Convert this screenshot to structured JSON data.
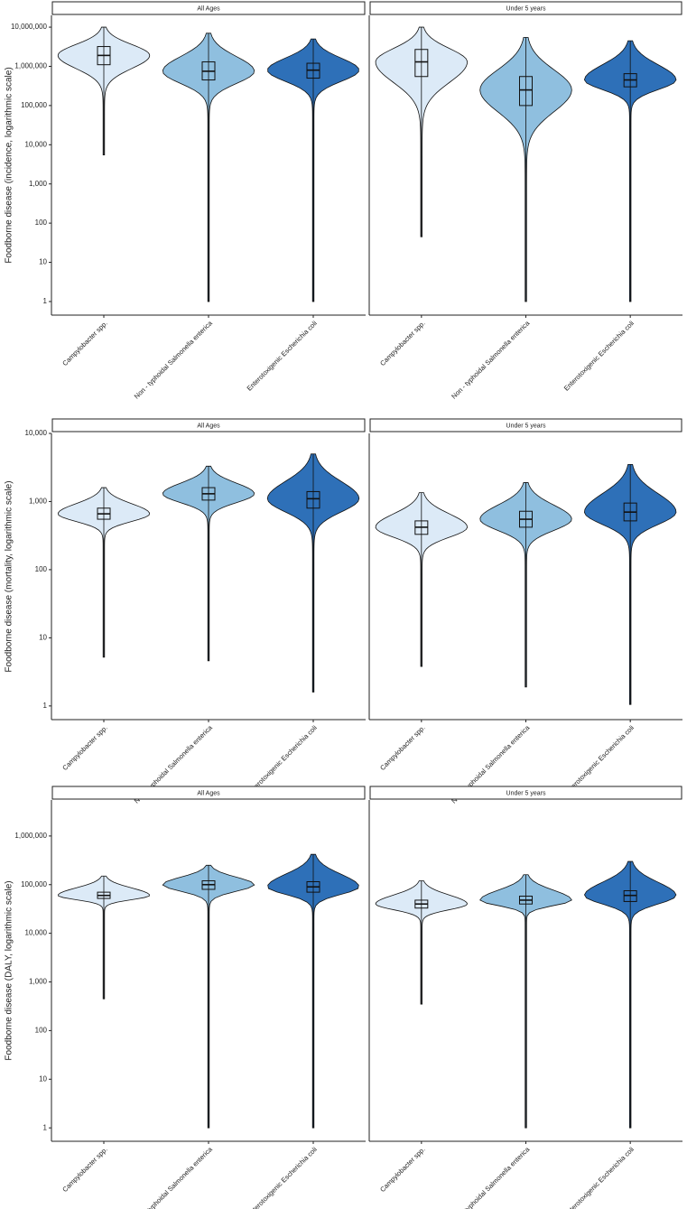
{
  "chart_data": [
    {
      "type": "violin",
      "y_label": "Foodborne disease (incidence, logarithmic scale)",
      "log_scale": true,
      "ylim": [
        0.45,
        20000000
      ],
      "yticks": [
        1,
        10,
        100,
        {
          "value": 1000,
          "label": "1,000"
        },
        {
          "value": 10000,
          "label": "10,000"
        },
        {
          "value": 100000,
          "label": "100,000"
        },
        {
          "value": 1000000,
          "label": "1,000,000"
        },
        {
          "value": 10000000,
          "label": "10,000,000"
        }
      ],
      "categories": [
        "Campylobacter spp.",
        "Non - typhoidal Salmonella enterica",
        "Enterotoxigenic Escherichia coli"
      ],
      "colors": [
        "#dceaf7",
        "#8fbfdf",
        "#2e70b8"
      ],
      "facets": [
        {
          "title": "All Ages",
          "stats": [
            {
              "min": 5500,
              "q1": 1100000,
              "median": 1900000,
              "q3": 3200000,
              "max": 10000000
            },
            {
              "min": 1,
              "q1": 450000,
              "median": 750000,
              "q3": 1300000,
              "max": 7000000
            },
            {
              "min": 1,
              "q1": 500000,
              "median": 800000,
              "q3": 1200000,
              "max": 5000000
            }
          ]
        },
        {
          "title": "Under 5 years",
          "stats": [
            {
              "min": 45,
              "q1": 550000,
              "median": 1300000,
              "q3": 2700000,
              "max": 10000000
            },
            {
              "min": 1,
              "q1": 100000,
              "median": 250000,
              "q3": 550000,
              "max": 5500000
            },
            {
              "min": 1,
              "q1": 300000,
              "median": 450000,
              "q3": 650000,
              "max": 4500000
            }
          ]
        }
      ]
    },
    {
      "type": "violin",
      "y_label": "Foodborne disease (mortality, logarithmic scale)",
      "log_scale": true,
      "ylim": [
        0.63,
        10000
      ],
      "yticks": [
        1,
        10,
        100,
        {
          "value": 1000,
          "label": "1,000"
        },
        {
          "value": 10000,
          "label": "10,000"
        }
      ],
      "categories": [
        "Campylobacter spp.",
        "Non - typhoidal Salmonella enterica",
        "Enterotoxigenic Escherichia coli"
      ],
      "colors": [
        "#dceaf7",
        "#8fbfdf",
        "#2e70b8"
      ],
      "facets": [
        {
          "title": "All Ages",
          "stats": [
            {
              "min": 5.2,
              "q1": 550,
              "median": 660,
              "q3": 800,
              "max": 1600
            },
            {
              "min": 4.6,
              "q1": 1050,
              "median": 1300,
              "q3": 1600,
              "max": 3300
            },
            {
              "min": 1.6,
              "q1": 800,
              "median": 1100,
              "q3": 1400,
              "max": 5000
            }
          ]
        },
        {
          "title": "Under 5 years",
          "stats": [
            {
              "min": 3.8,
              "q1": 330,
              "median": 420,
              "q3": 520,
              "max": 1350
            },
            {
              "min": 1.9,
              "q1": 420,
              "median": 550,
              "q3": 720,
              "max": 1900
            },
            {
              "min": 1.05,
              "q1": 520,
              "median": 700,
              "q3": 950,
              "max": 3500
            }
          ]
        }
      ]
    },
    {
      "type": "violin",
      "y_label": "Foodborne disease (DALY, logarithmic scale)",
      "log_scale": true,
      "ylim": [
        0.53,
        5500000
      ],
      "yticks": [
        1,
        10,
        100,
        {
          "value": 1000,
          "label": "1,000"
        },
        {
          "value": 10000,
          "label": "10,000"
        },
        {
          "value": 100000,
          "label": "100,000"
        },
        {
          "value": 1000000,
          "label": "1,000,000"
        }
      ],
      "categories": [
        "Campylobacter spp.",
        "Non - typhoidal Salmonella enterica",
        "Enterotoxigenic Escherichia coli"
      ],
      "colors": [
        "#dceaf7",
        "#8fbfdf",
        "#2e70b8"
      ],
      "facets": [
        {
          "title": "All Ages",
          "stats": [
            {
              "min": 450,
              "q1": 52000,
              "median": 60000,
              "q3": 70000,
              "max": 150000
            },
            {
              "min": 1,
              "q1": 80000,
              "median": 100000,
              "q3": 120000,
              "max": 250000
            },
            {
              "min": 1,
              "q1": 70000,
              "median": 90000,
              "q3": 115000,
              "max": 420000
            }
          ]
        },
        {
          "title": "Under 5 years",
          "stats": [
            {
              "min": 350,
              "q1": 33000,
              "median": 40000,
              "q3": 48000,
              "max": 120000
            },
            {
              "min": 1,
              "q1": 40000,
              "median": 48000,
              "q3": 58000,
              "max": 160000
            },
            {
              "min": 1,
              "q1": 45000,
              "median": 60000,
              "q3": 75000,
              "max": 300000
            }
          ]
        }
      ]
    }
  ]
}
